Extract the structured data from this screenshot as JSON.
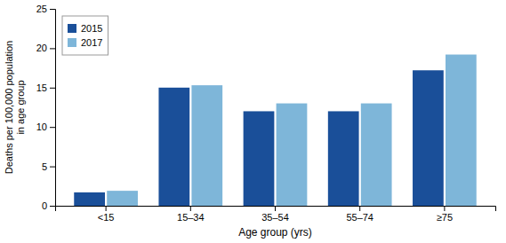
{
  "chart_data": {
    "type": "bar",
    "categories": [
      "<15",
      "15–34",
      "35–54",
      "55–74",
      "≥75"
    ],
    "series": [
      {
        "name": "2015",
        "color": "#1a4f99",
        "values": [
          1.7,
          15.0,
          12.0,
          12.0,
          17.2
        ]
      },
      {
        "name": "2017",
        "color": "#7eb6d9",
        "values": [
          1.9,
          15.3,
          13.0,
          13.0,
          19.2
        ]
      }
    ],
    "xlabel": "Age group (yrs)",
    "ylabel": "Deaths per 100,000 population\nin age group",
    "ylim": [
      0,
      25
    ],
    "yticks": [
      0,
      5,
      10,
      15,
      20,
      25
    ],
    "legend": "upper-left",
    "grid": false
  }
}
